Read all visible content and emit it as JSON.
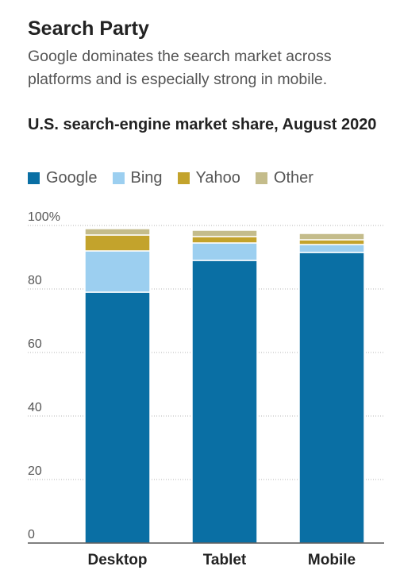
{
  "title": "Search Party",
  "subtitle": "Google dominates the search market across platforms and is especially strong in mobile.",
  "chart_data": {
    "type": "bar",
    "stacked": true,
    "title": "U.S. search-engine market share, August 2020",
    "xlabel": "",
    "ylabel": "",
    "ylim": [
      0,
      100
    ],
    "y_ticks": [
      0,
      20,
      40,
      60,
      80,
      100
    ],
    "y_tick_labels": [
      "0",
      "20",
      "40",
      "60",
      "80",
      "100%"
    ],
    "categories": [
      "Desktop",
      "Tablet",
      "Mobile"
    ],
    "series": [
      {
        "name": "Google",
        "color": "#0a6fa4",
        "values": [
          79,
          89,
          91.5
        ]
      },
      {
        "name": "Bing",
        "color": "#9ccff0",
        "values": [
          13,
          5.5,
          2.5
        ]
      },
      {
        "name": "Yahoo",
        "color": "#c3a32c",
        "values": [
          5,
          2,
          1.5
        ]
      },
      {
        "name": "Other",
        "color": "#c4bc8b",
        "values": [
          2,
          2,
          2
        ]
      }
    ],
    "grid": true,
    "legend_position": "top-left"
  }
}
